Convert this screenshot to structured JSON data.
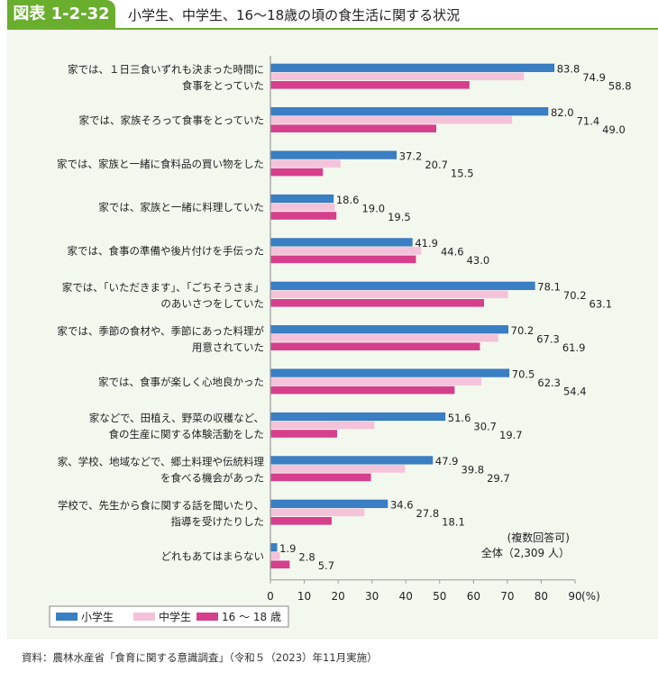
{
  "header": {
    "label": "図表 1-2-32",
    "title": "小学生、中学生、16～18歳の頃の食生活に関する状況"
  },
  "footer": "資料：農林水産省「食育に関する意識調査」（令和５（2023）年11月実施）",
  "chart_data": {
    "type": "bar",
    "orientation": "horizontal",
    "title": "小学生、中学生、16～18歳の頃の食生活に関する状況",
    "categories": [
      [
        "家では、１日三食いずれも決まった時間に",
        "食事をとっていた"
      ],
      [
        "家では、家族そろって食事をとっていた"
      ],
      [
        "家では、家族と一緒に食料品の買い物をした"
      ],
      [
        "家では、家族と一緒に料理していた"
      ],
      [
        "家では、食事の準備や後片付けを手伝った"
      ],
      [
        "家では、「いただきます」、「ごちそうさま」",
        "のあいさつをしていた"
      ],
      [
        "家では、季節の食材や、季節にあった料理が",
        "用意されていた"
      ],
      [
        "家では、食事が楽しく心地良かった"
      ],
      [
        "家などで、田植え、野菜の収穫など、",
        "食の生産に関する体験活動をした"
      ],
      [
        "家、学校、地域などで、郷土料理や伝統料理",
        "を食べる機会があった"
      ],
      [
        "学校で、先生から食に関する話を聞いたり、",
        "指導を受けたりした"
      ],
      [
        "どれもあてはまらない"
      ]
    ],
    "series": [
      {
        "name": "小学生",
        "color": "#3a7fc4",
        "values": [
          83.8,
          82.0,
          37.2,
          18.6,
          41.9,
          78.1,
          70.2,
          70.5,
          51.6,
          47.9,
          34.6,
          1.9
        ]
      },
      {
        "name": "中学生",
        "color": "#f4c3da",
        "values": [
          74.9,
          71.4,
          20.7,
          19.0,
          44.6,
          70.2,
          67.3,
          62.3,
          30.7,
          39.8,
          27.8,
          2.8
        ]
      },
      {
        "name": "16 ～ 18 歳",
        "color": "#d63f8c",
        "values": [
          58.8,
          49.0,
          15.5,
          19.5,
          43.0,
          63.1,
          61.9,
          54.4,
          19.7,
          29.7,
          18.1,
          5.7
        ]
      }
    ],
    "xlim": [
      0,
      90
    ],
    "xticks": [
      0,
      10,
      20,
      30,
      40,
      50,
      60,
      70,
      80,
      90
    ],
    "xunit": "(%)",
    "annotation": [
      "(複数回答可)",
      "全体（2,309 人）"
    ],
    "legend": "bottom-left"
  }
}
